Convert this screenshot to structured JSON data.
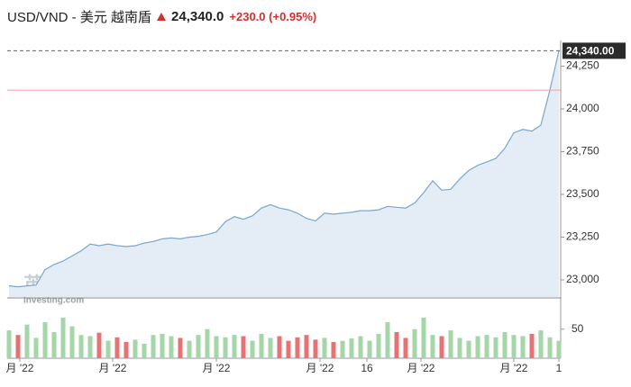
{
  "chart_data": {
    "type": "line",
    "title": "USD/VND - 美元 越南盾",
    "price": "24,340.0",
    "change": "+230.0 (+0.95%)",
    "watermark": [
      "英为财情",
      "Investing.com"
    ],
    "color": "#7aa6cf",
    "area_color": "#e4edf5",
    "values": [
      22965,
      22960,
      22965,
      22970,
      23060,
      23090,
      23110,
      23140,
      23170,
      23210,
      23200,
      23210,
      23200,
      23195,
      23200,
      23215,
      23225,
      23240,
      23245,
      23240,
      23250,
      23255,
      23265,
      23280,
      23340,
      23370,
      23355,
      23375,
      23420,
      23440,
      23420,
      23410,
      23390,
      23360,
      23345,
      23390,
      23385,
      23390,
      23395,
      23405,
      23405,
      23410,
      23430,
      23425,
      23420,
      23450,
      23510,
      23580,
      23525,
      23530,
      23590,
      23640,
      23670,
      23690,
      23710,
      23770,
      23860,
      23880,
      23870,
      23905,
      24110,
      24340
    ],
    "last_value_label": "24,340.00",
    "previous_close": 24110,
    "previous_close_color": "#f0a0a0",
    "xlim": [
      0,
      61
    ],
    "xticks": [
      {
        "value": 1.2,
        "label": "月 '22"
      },
      {
        "value": 11.5,
        "label": "月 '22"
      },
      {
        "value": 23,
        "label": "月 '22"
      },
      {
        "value": 34.5,
        "label": "月 '22"
      },
      {
        "value": 39.7,
        "label": "16"
      },
      {
        "value": 45.7,
        "label": "月 '22"
      },
      {
        "value": 56,
        "label": "月 '22"
      },
      {
        "value": 61,
        "label": "1"
      }
    ],
    "ylim": [
      22900,
      24400
    ],
    "yticks": [
      {
        "value": 23000,
        "label": "23,000"
      },
      {
        "value": 23250,
        "label": "23,250"
      },
      {
        "value": 23500,
        "label": "23,500"
      },
      {
        "value": 23750,
        "label": "23,750"
      },
      {
        "value": 24000,
        "label": "24,000"
      },
      {
        "value": 24250,
        "label": "24,250"
      }
    ],
    "volume": {
      "values": [
        48,
        40,
        58,
        35,
        62,
        45,
        70,
        55,
        40,
        38,
        44,
        30,
        36,
        28,
        32,
        25,
        40,
        42,
        38,
        35,
        30,
        40,
        50,
        38,
        36,
        40,
        38,
        30,
        42,
        35,
        38,
        30,
        36,
        40,
        32,
        35,
        28,
        30,
        34,
        38,
        30,
        42,
        62,
        45,
        35,
        50,
        70,
        40,
        38,
        48,
        35,
        30,
        38,
        40,
        36,
        45,
        40,
        38,
        42,
        48,
        36,
        30
      ],
      "ylim": [
        0,
        90
      ],
      "yticks": [
        50
      ],
      "up_color": "#a5d6a7",
      "down_color": "#e57373"
    }
  }
}
